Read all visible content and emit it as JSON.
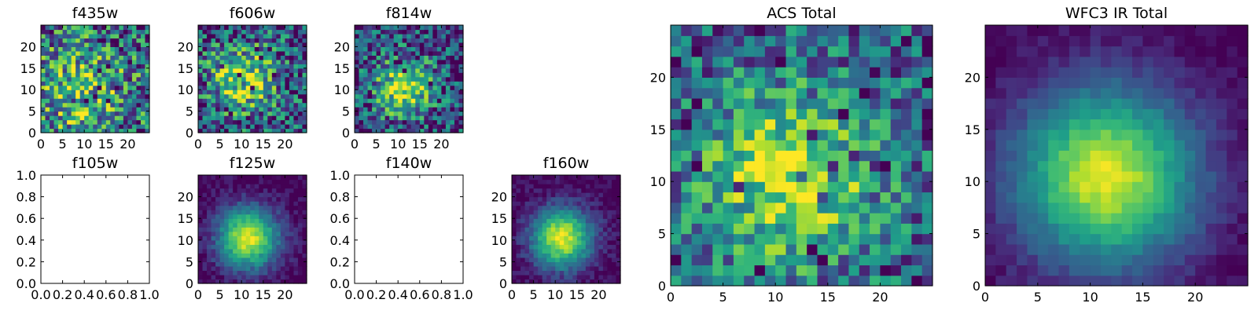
{
  "chart_data": [
    {
      "type": "heatmap",
      "title": "f435w",
      "grid_size": 25,
      "colormap": "viridis",
      "xticks": [
        "0",
        "5",
        "10",
        "15",
        "20"
      ],
      "yticks": [
        "0",
        "5",
        "10",
        "15",
        "20"
      ],
      "xlim": [
        0,
        25
      ],
      "ylim": [
        0,
        25
      ],
      "peak": [
        9,
        9
      ],
      "sigma": 8,
      "amp": 0.45,
      "noise": 0.55,
      "base": 0.3,
      "seed": 11
    },
    {
      "type": "heatmap",
      "title": "f606w",
      "grid_size": 25,
      "colormap": "viridis",
      "xticks": [
        "0",
        "5",
        "10",
        "15",
        "20"
      ],
      "yticks": [
        "0",
        "5",
        "10",
        "15",
        "20"
      ],
      "xlim": [
        0,
        25
      ],
      "ylim": [
        0,
        25
      ],
      "peak": [
        10,
        12
      ],
      "sigma": 6,
      "amp": 0.55,
      "noise": 0.5,
      "base": 0.25,
      "seed": 23
    },
    {
      "type": "heatmap",
      "title": "f814w",
      "grid_size": 25,
      "colormap": "viridis",
      "xticks": [
        "0",
        "5",
        "10",
        "15",
        "20"
      ],
      "yticks": [
        "0",
        "5",
        "10",
        "15",
        "20"
      ],
      "xlim": [
        0,
        25
      ],
      "ylim": [
        0,
        25
      ],
      "peak": [
        11,
        10
      ],
      "sigma": 5,
      "amp": 0.65,
      "noise": 0.45,
      "base": 0.22,
      "seed": 37
    },
    {
      "type": "empty",
      "title": "f105w",
      "xticks": [
        "0.0",
        "0.2",
        "0.4",
        "0.6",
        "0.8",
        "1.0"
      ],
      "yticks": [
        "0.0",
        "0.2",
        "0.4",
        "0.6",
        "0.8",
        "1.0"
      ],
      "xlim": [
        0,
        1
      ],
      "ylim": [
        0,
        1
      ]
    },
    {
      "type": "heatmap",
      "title": "f125w",
      "grid_size": 25,
      "colormap": "viridis",
      "xticks": [
        "0",
        "5",
        "10",
        "15",
        "20"
      ],
      "yticks": [
        "0",
        "5",
        "10",
        "15",
        "20"
      ],
      "xlim": [
        0,
        25
      ],
      "ylim": [
        0,
        25
      ],
      "peak": [
        11,
        10
      ],
      "sigma": 5,
      "amp": 0.95,
      "noise": 0.12,
      "base": 0.0,
      "seed": 41
    },
    {
      "type": "empty",
      "title": "f140w",
      "xticks": [
        "0.0",
        "0.2",
        "0.4",
        "0.6",
        "0.8",
        "1.0"
      ],
      "yticks": [
        "0.0",
        "0.2",
        "0.4",
        "0.6",
        "0.8",
        "1.0"
      ],
      "xlim": [
        0,
        1
      ],
      "ylim": [
        0,
        1
      ]
    },
    {
      "type": "heatmap",
      "title": "f160w",
      "grid_size": 25,
      "colormap": "viridis",
      "xticks": [
        "0",
        "5",
        "10",
        "15",
        "20"
      ],
      "yticks": [
        "0",
        "5",
        "10",
        "15",
        "20"
      ],
      "xlim": [
        0,
        25
      ],
      "ylim": [
        0,
        25
      ],
      "peak": [
        11,
        10
      ],
      "sigma": 5,
      "amp": 0.95,
      "noise": 0.12,
      "base": 0.0,
      "seed": 53
    },
    {
      "type": "heatmap",
      "title": "ACS Total",
      "grid_size": 25,
      "colormap": "viridis",
      "xticks": [
        "0",
        "5",
        "10",
        "15",
        "20"
      ],
      "yticks": [
        "0",
        "5",
        "10",
        "15",
        "20"
      ],
      "xlim": [
        0,
        25
      ],
      "ylim": [
        0,
        25
      ],
      "peak": [
        11,
        10
      ],
      "sigma": 6,
      "amp": 0.6,
      "noise": 0.38,
      "base": 0.3,
      "seed": 67
    },
    {
      "type": "heatmap",
      "title": "WFC3 IR Total",
      "grid_size": 25,
      "colormap": "viridis",
      "xticks": [
        "0",
        "5",
        "10",
        "15",
        "20"
      ],
      "yticks": [
        "0",
        "5",
        "10",
        "15",
        "20"
      ],
      "xlim": [
        0,
        25
      ],
      "ylim": [
        0,
        25
      ],
      "peak": [
        11,
        10
      ],
      "sigma": 6,
      "amp": 0.95,
      "noise": 0.07,
      "base": 0.0,
      "seed": 79
    }
  ]
}
